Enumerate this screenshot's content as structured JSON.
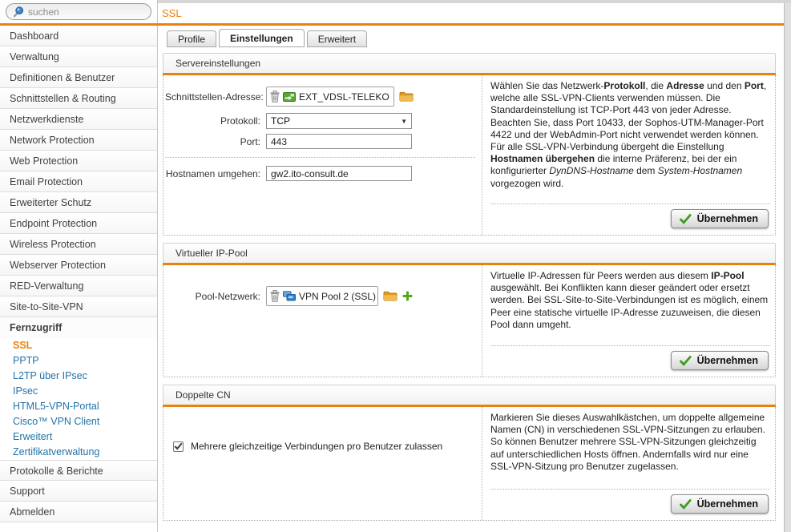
{
  "search": {
    "placeholder": "suchen"
  },
  "page_title": "SSL",
  "apply_label": "Übernehmen",
  "colors": {
    "accent": "#e8820c",
    "link_blue": "#2373a8",
    "check_green": "#3f9c1e",
    "folder_orange": "#eda93c"
  },
  "icons": {
    "search": "magnifier",
    "delete": "trash-can",
    "interface": "green-network-interface",
    "network_pool": "blue-network-group",
    "folder": "orange-folder",
    "add": "green-plus",
    "apply_check": "green-checkmark",
    "select_arrow": "▼"
  },
  "sidebar": {
    "items": [
      {
        "id": "dashboard",
        "label": "Dashboard",
        "type": "item"
      },
      {
        "id": "verwaltung",
        "label": "Verwaltung",
        "type": "item"
      },
      {
        "id": "definitionen-benutzer",
        "label": "Definitionen & Benutzer",
        "type": "item"
      },
      {
        "id": "schnittstellen-routing",
        "label": "Schnittstellen & Routing",
        "type": "item"
      },
      {
        "id": "netzwerkdienste",
        "label": "Netzwerkdienste",
        "type": "item"
      },
      {
        "id": "network-protection",
        "label": "Network Protection",
        "type": "item"
      },
      {
        "id": "web-protection",
        "label": "Web Protection",
        "type": "item"
      },
      {
        "id": "email-protection",
        "label": "Email Protection",
        "type": "item"
      },
      {
        "id": "erweiterter-schutz",
        "label": "Erweiterter Schutz",
        "type": "item"
      },
      {
        "id": "endpoint-protection",
        "label": "Endpoint Protection",
        "type": "item"
      },
      {
        "id": "wireless-protection",
        "label": "Wireless Protection",
        "type": "item"
      },
      {
        "id": "webserver-protection",
        "label": "Webserver Protection",
        "type": "item"
      },
      {
        "id": "red-verwaltung",
        "label": "RED-Verwaltung",
        "type": "item"
      },
      {
        "id": "site-to-site-vpn",
        "label": "Site-to-Site-VPN",
        "type": "item"
      },
      {
        "id": "fernzugriff",
        "label": "Fernzugriff",
        "type": "section"
      },
      {
        "id": "ssl",
        "label": "SSL",
        "type": "subitem",
        "active": true
      },
      {
        "id": "pptp",
        "label": "PPTP",
        "type": "subitem"
      },
      {
        "id": "l2tp-ueber-ipsec",
        "label": "L2TP über IPsec",
        "type": "subitem"
      },
      {
        "id": "ipsec",
        "label": "IPsec",
        "type": "subitem"
      },
      {
        "id": "html5-vpn-portal",
        "label": "HTML5-VPN-Portal",
        "type": "subitem"
      },
      {
        "id": "cisco-vpn-client",
        "label": "Cisco™ VPN Client",
        "type": "subitem"
      },
      {
        "id": "erweitert",
        "label": "Erweitert",
        "type": "subitem"
      },
      {
        "id": "zertifikatverwaltung",
        "label": "Zertifikatverwaltung",
        "type": "subitem"
      },
      {
        "id": "protokolle-berichte",
        "label": "Protokolle & Berichte",
        "type": "item",
        "divider_top": true
      },
      {
        "id": "support",
        "label": "Support",
        "type": "item"
      },
      {
        "id": "abmelden",
        "label": "Abmelden",
        "type": "item"
      }
    ]
  },
  "tabs": [
    {
      "id": "profile",
      "label": "Profile"
    },
    {
      "id": "einstellungen",
      "label": "Einstellungen",
      "active": true
    },
    {
      "id": "erweitert",
      "label": "Erweitert"
    }
  ],
  "sections": {
    "server": {
      "title": "Servereinstellungen",
      "fields": {
        "interface_label": "Schnittstellen-Adresse:",
        "interface_value": "EXT_VDSL-TELEKO",
        "protocol_label": "Protokoll:",
        "protocol_value": "TCP",
        "port_label": "Port:",
        "port_value": "443",
        "hostname_label": "Hostnamen umgehen:",
        "hostname_value": "gw2.ito-consult.de"
      },
      "help": [
        {
          "t": "Wählen Sie das Netzwerk-"
        },
        {
          "t": "Protokoll",
          "b": 1
        },
        {
          "t": ", die "
        },
        {
          "t": "Adresse",
          "b": 1
        },
        {
          "t": " und den "
        },
        {
          "t": "Port",
          "b": 1
        },
        {
          "t": ", welche alle SSL-VPN-Clients verwenden müssen. Die Standardeinstellung ist TCP-Port 443 von jeder Adresse. Beachten Sie, dass Port 10433, der Sophos-UTM-Manager-Port 4422 und der WebAdmin-Port nicht verwendet werden können."
        },
        {
          "br": 1
        },
        {
          "t": "Für alle SSL-VPN-Verbindung übergeht die Einstellung "
        },
        {
          "t": "Hostnamen übergehen",
          "b": 1
        },
        {
          "t": " die interne Präferenz, bei der ein konfigurierter "
        },
        {
          "t": "DynDNS-Hostname",
          "i": 1
        },
        {
          "t": " dem "
        },
        {
          "t": "System-Hostnamen",
          "i": 1
        },
        {
          "t": " vorgezogen wird."
        }
      ]
    },
    "pool": {
      "title": "Virtueller IP-Pool",
      "fields": {
        "pool_label": "Pool-Netzwerk:",
        "pool_value": "VPN Pool 2 (SSL)"
      },
      "help": [
        {
          "t": "Virtuelle IP-Adressen für Peers werden aus diesem "
        },
        {
          "t": "IP-Pool",
          "b": 1
        },
        {
          "t": " ausgewählt. Bei Konflikten kann dieser geändert oder ersetzt werden. Bei SSL-Site-to-Site-Verbindungen ist es möglich, einem Peer eine statische virtuelle IP-Adresse zuzuweisen, die diesen Pool dann umgeht."
        }
      ]
    },
    "cn": {
      "title": "Doppelte CN",
      "checkbox_label": "Mehrere gleichzeitige Verbindungen pro Benutzer zulassen",
      "checkbox_checked": true,
      "help": [
        {
          "t": "Markieren Sie dieses Auswahlkästchen, um doppelte allgemeine Namen (CN) in verschiedenen SSL-VPN-Sitzungen zu erlauben. So können Benutzer mehrere SSL-VPN-Sitzungen gleichzeitig auf unterschiedlichen Hosts öffnen. Andernfalls wird nur eine SSL-VPN-Sitzung pro Benutzer zugelassen."
        }
      ]
    }
  }
}
